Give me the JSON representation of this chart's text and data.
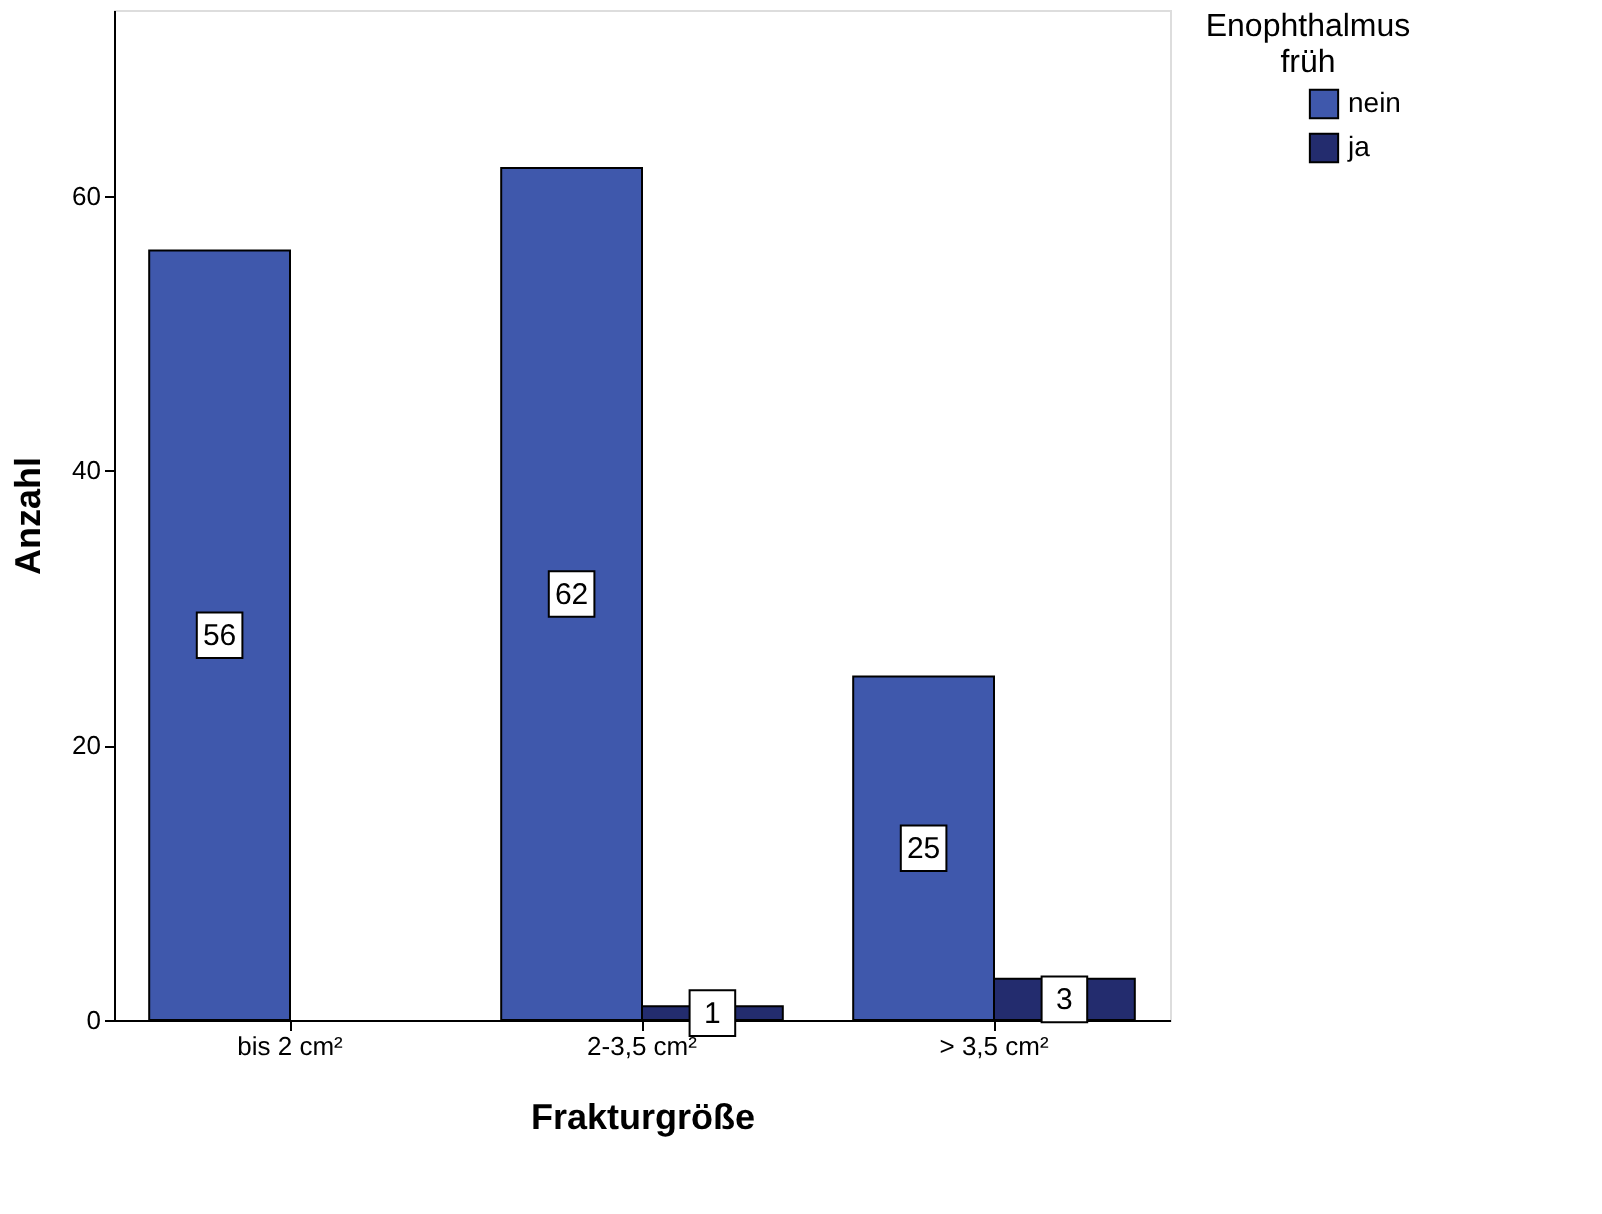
{
  "chart_data": {
    "type": "bar",
    "xlabel": "Frakturgröße",
    "ylabel": "Anzahl",
    "legend_title": "Enophthalmus früh",
    "categories": [
      "bis 2 cm²",
      "2-3,5 cm²",
      "> 3,5 cm²"
    ],
    "series": [
      {
        "name": "nein",
        "color": "#3f58ac",
        "values": [
          56,
          62,
          25
        ]
      },
      {
        "name": "ja",
        "color": "#232c6e",
        "values": [
          null,
          1,
          3
        ]
      }
    ],
    "ylim": [
      0,
      73.5
    ],
    "yticks": [
      0,
      20,
      40,
      60
    ],
    "data_labels": true,
    "legend": "top right",
    "grid": false
  }
}
